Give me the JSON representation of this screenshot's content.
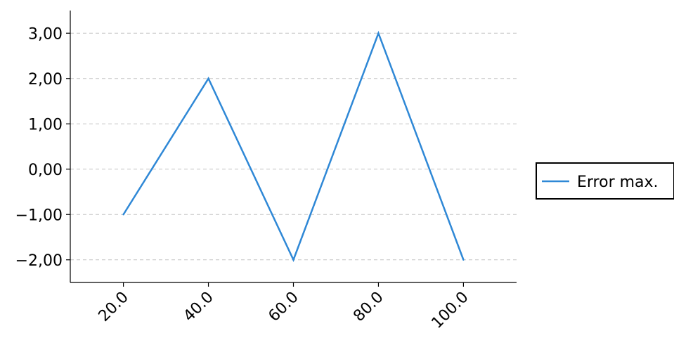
{
  "chart_data": {
    "type": "line",
    "title": "",
    "xlabel": "",
    "ylabel": "",
    "x": [
      20,
      40,
      60,
      80,
      100
    ],
    "x_tick_labels": [
      "20.0",
      "40.0",
      "60.0",
      "80.0",
      "100.0"
    ],
    "xlim": [
      7.5,
      112.5
    ],
    "ylim": [
      -2.5,
      3.5
    ],
    "y_ticks": [
      -2,
      -1,
      0,
      1,
      2,
      3
    ],
    "y_tick_labels": [
      "−2,00",
      "−1,00",
      "0,00",
      "1,00",
      "2,00",
      "3,00"
    ],
    "grid": {
      "y": true,
      "x": false,
      "style": "dashed"
    },
    "legend_position": "right",
    "series": [
      {
        "name": "Error max.",
        "color": "#2f88d6",
        "values": [
          -1,
          2,
          -2,
          3,
          -2
        ]
      }
    ]
  }
}
